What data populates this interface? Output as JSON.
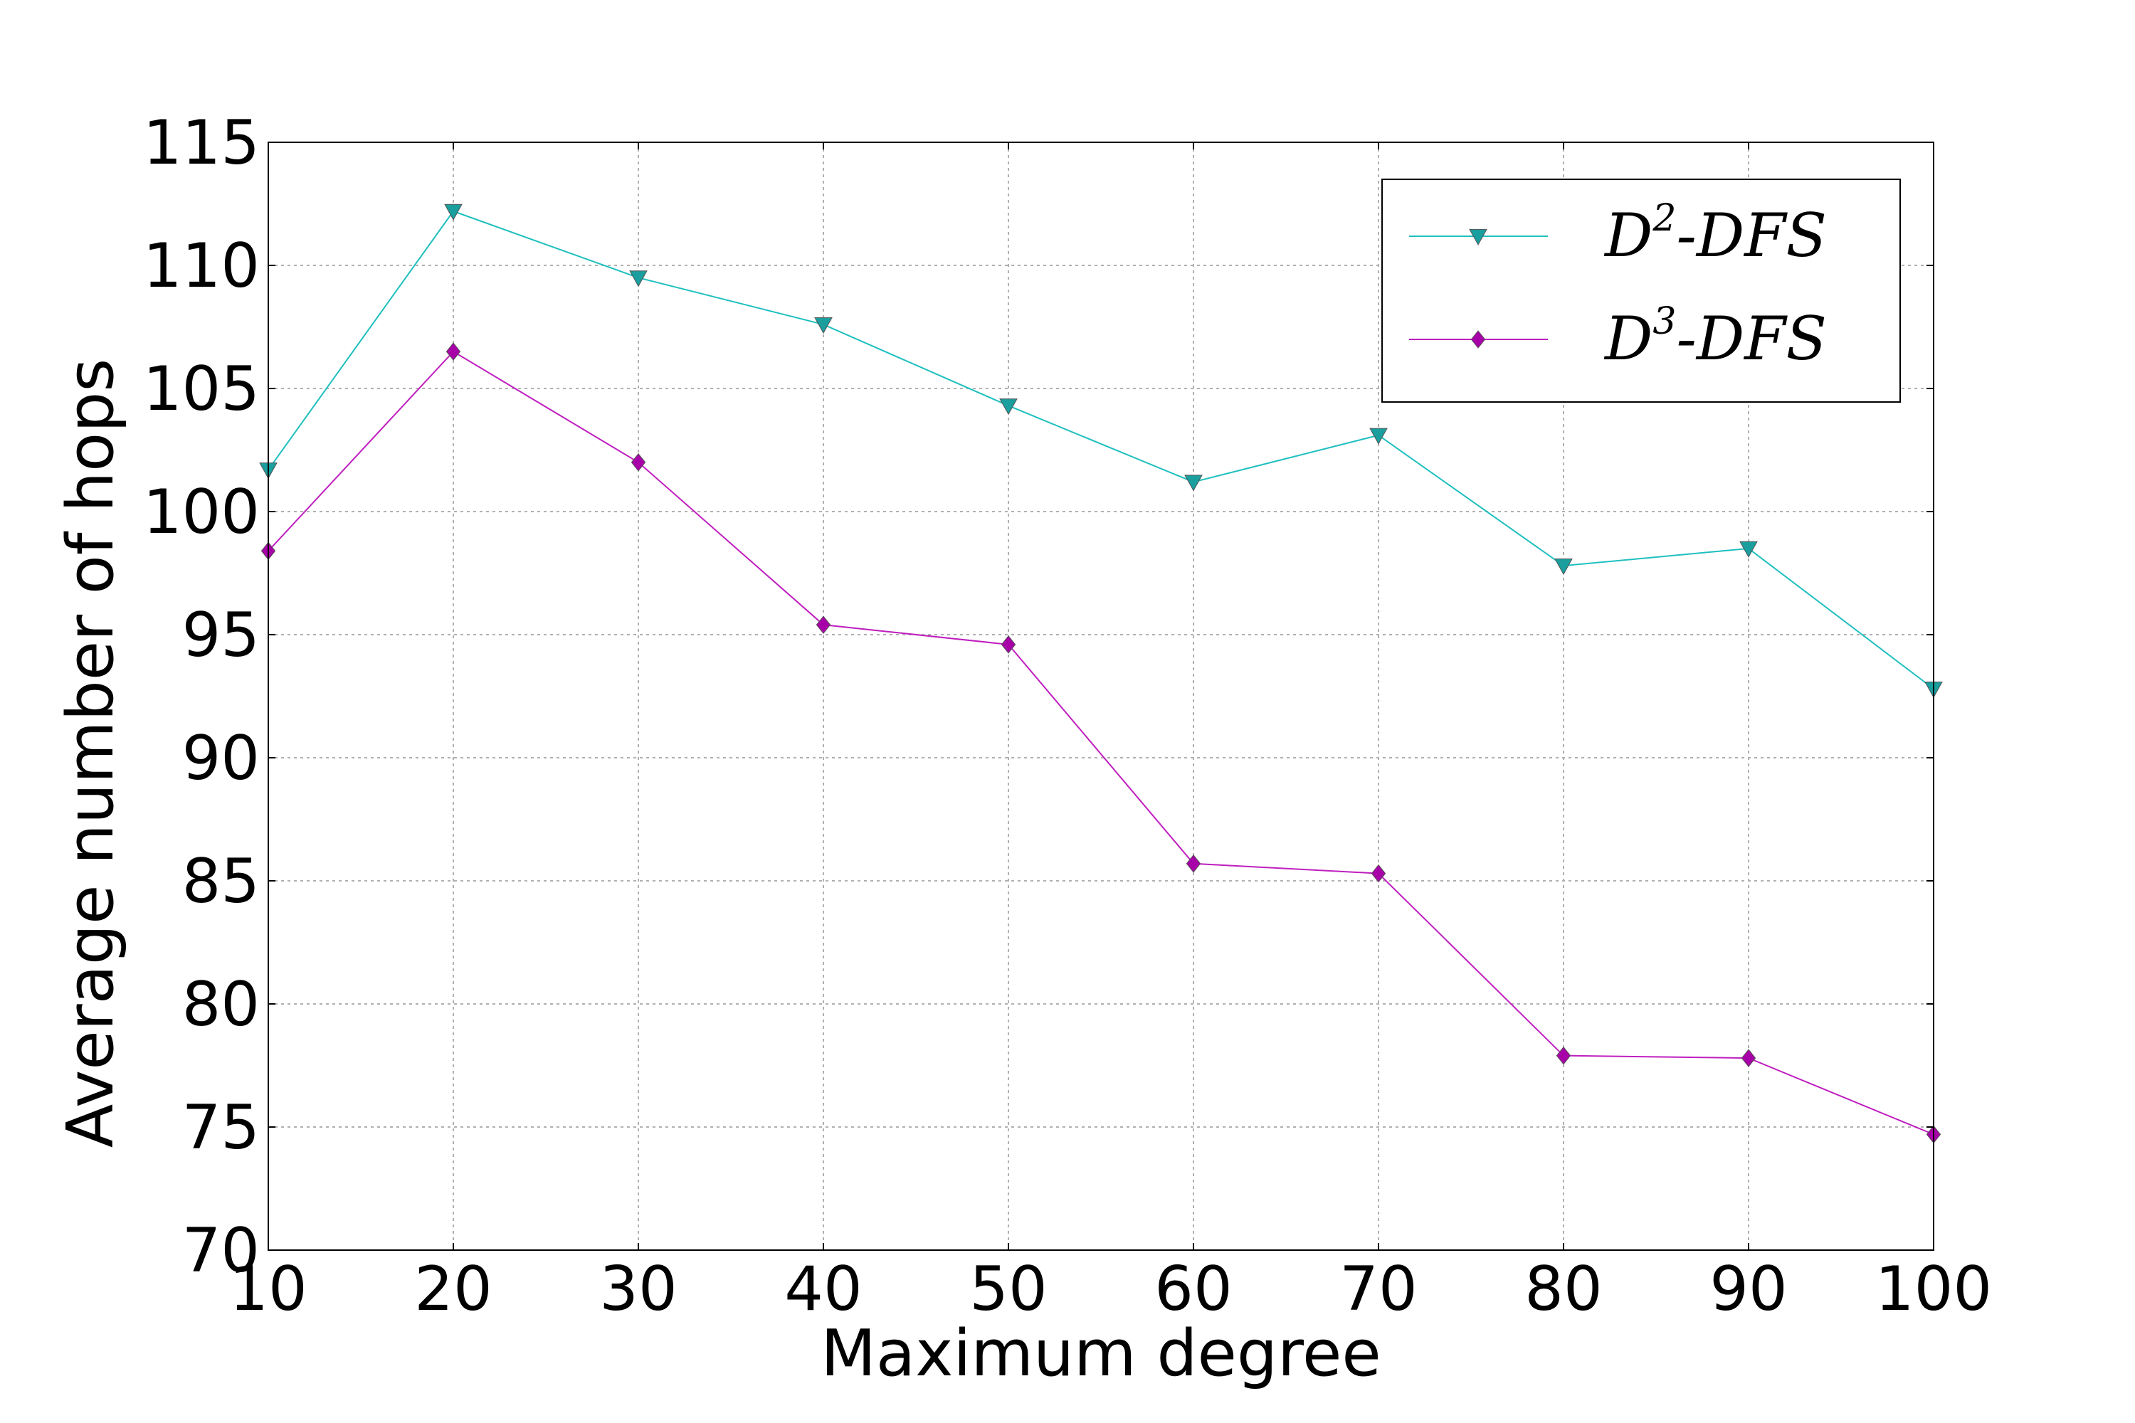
{
  "chart_data": {
    "type": "line",
    "xlabel": "Maximum degree",
    "ylabel": "Average number of hops",
    "xlim": [
      10,
      100
    ],
    "ylim": [
      70,
      115
    ],
    "x_ticks": [
      10,
      20,
      30,
      40,
      50,
      60,
      70,
      80,
      90,
      100
    ],
    "y_ticks": [
      70,
      75,
      80,
      85,
      90,
      95,
      100,
      105,
      110,
      115
    ],
    "grid": true,
    "legend_position": "top-right",
    "x": [
      10,
      20,
      30,
      40,
      50,
      60,
      70,
      80,
      90,
      100
    ],
    "series": [
      {
        "name_base": "D",
        "name_sup": "2",
        "name_tail": "-DFS",
        "color": "#1fbfbf",
        "marker_color": "#1a9e9e",
        "marker": "triangle-down",
        "values": [
          101.7,
          112.2,
          109.5,
          107.6,
          104.3,
          101.2,
          103.1,
          97.8,
          98.5,
          92.8
        ]
      },
      {
        "name_base": "D",
        "name_sup": "3",
        "name_tail": "-DFS",
        "color": "#bf1fbf",
        "marker_color": "#a800a8",
        "marker": "diamond",
        "values": [
          98.4,
          106.5,
          102.0,
          95.4,
          94.6,
          85.7,
          85.3,
          77.9,
          77.8,
          74.7
        ]
      }
    ]
  }
}
